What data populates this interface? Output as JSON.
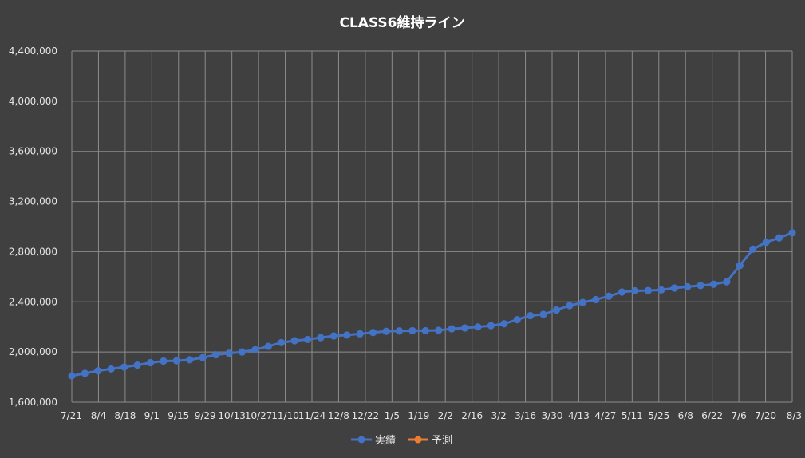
{
  "chart_data": {
    "type": "line",
    "title": "CLASS6維持ライン",
    "xlabel": "",
    "ylabel": "",
    "ylim": [
      1600000,
      4400000
    ],
    "yticks": [
      1600000,
      2000000,
      2400000,
      2800000,
      3200000,
      3600000,
      4000000,
      4400000
    ],
    "ytick_labels": [
      "1,600,000",
      "2,000,000",
      "2,400,000",
      "2,800,000",
      "3,200,000",
      "3,600,000",
      "4,000,000",
      "4,400,000"
    ],
    "xtick_labels": [
      "7/21",
      "8/4",
      "8/18",
      "9/1",
      "9/15",
      "9/29",
      "10/13",
      "10/27",
      "11/10",
      "11/24",
      "12/8",
      "12/22",
      "1/5",
      "1/19",
      "2/2",
      "2/16",
      "3/2",
      "3/16",
      "3/30",
      "4/13",
      "4/27",
      "5/11",
      "5/25",
      "6/8",
      "6/22",
      "7/6",
      "7/20",
      "8/3"
    ],
    "grid": true,
    "legend_position": "bottom",
    "series": [
      {
        "name": "実績",
        "color": "#4472c4",
        "values": [
          1810000,
          1830000,
          1850000,
          1865000,
          1880000,
          1895000,
          1915000,
          1928000,
          1930000,
          1938000,
          1955000,
          1978000,
          1990000,
          2000000,
          2018000,
          2045000,
          2075000,
          2090000,
          2100000,
          2115000,
          2128000,
          2135000,
          2145000,
          2155000,
          2165000,
          2168000,
          2170000,
          2170000,
          2173000,
          2185000,
          2192000,
          2200000,
          2210000,
          2225000,
          2258000,
          2290000,
          2300000,
          2335000,
          2370000,
          2395000,
          2418000,
          2445000,
          2478000,
          2488000,
          2490000,
          2495000,
          2510000,
          2520000,
          2530000,
          2540000,
          2560000,
          2690000,
          2820000,
          2875000,
          2910000,
          2950000
        ]
      },
      {
        "name": "予測",
        "color": "#ed7d31",
        "values": []
      }
    ]
  }
}
